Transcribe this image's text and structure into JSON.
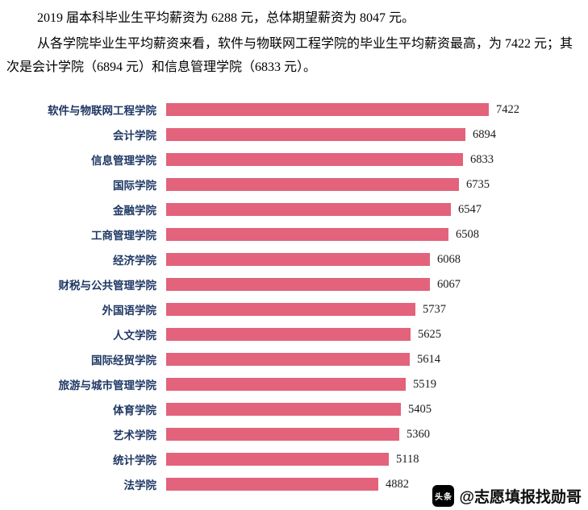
{
  "paragraphs": [
    "2019 届本科毕业生平均薪资为 6288 元，总体期望薪资为 8047 元。",
    "从各学院毕业生平均薪资来看，软件与物联网工程学院的毕业生平均薪资最高，为 7422 元；其次是会计学院（6894 元）和信息管理学院（6833 元）。"
  ],
  "chart_data": {
    "type": "bar",
    "orientation": "horizontal",
    "title": "",
    "xlabel": "",
    "ylabel": "",
    "xlim": [
      0,
      7800
    ],
    "grid": false,
    "legend": false,
    "bar_color": "#e2637b",
    "label_color": "#1f3864",
    "value_color": "#1a1a1a",
    "categories": [
      "软件与物联网工程学院",
      "会计学院",
      "信息管理学院",
      "国际学院",
      "金融学院",
      "工商管理学院",
      "经济学院",
      "财税与公共管理学院",
      "外国语学院",
      "人文学院",
      "国际经贸学院",
      "旅游与城市管理学院",
      "体育学院",
      "艺术学院",
      "统计学院",
      "法学院"
    ],
    "values": [
      7422,
      6894,
      6833,
      6735,
      6547,
      6508,
      6068,
      6067,
      5737,
      5625,
      5614,
      5519,
      5405,
      5360,
      5118,
      4882
    ]
  },
  "watermark": {
    "logo_text": "头条",
    "handle": "@志愿填报找勋哥"
  }
}
